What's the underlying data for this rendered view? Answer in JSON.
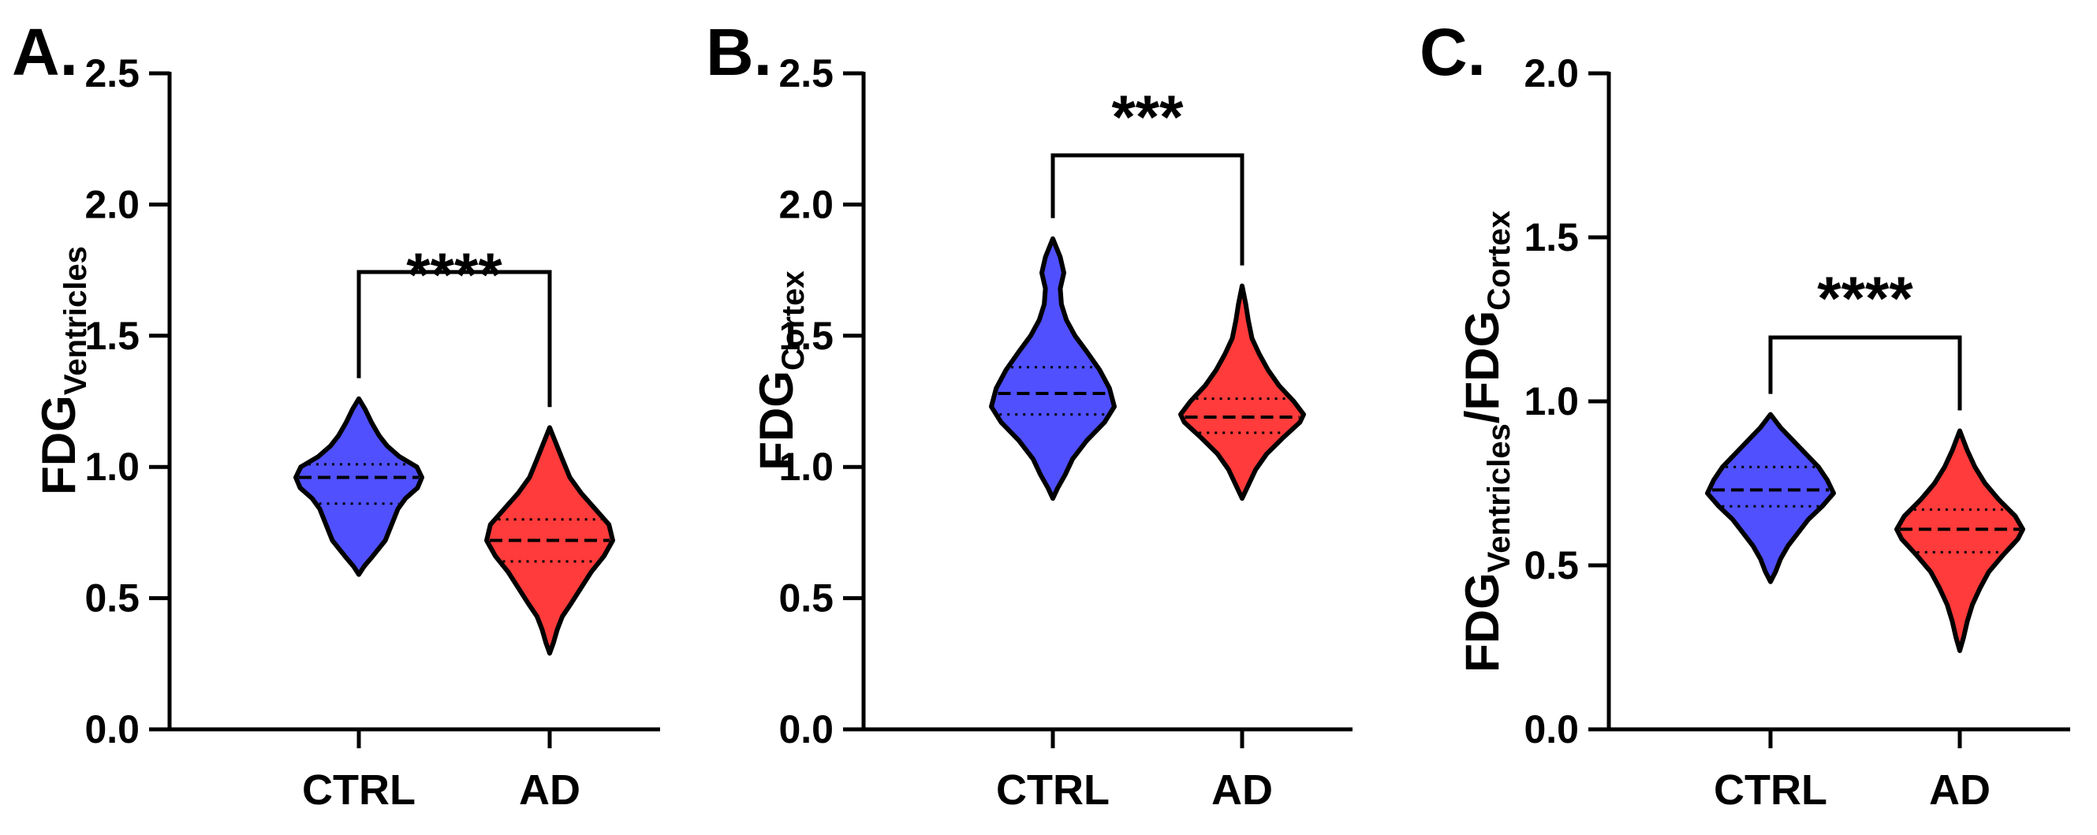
{
  "chart_data": [
    {
      "type": "violin",
      "panel_label": "A.",
      "ylabel": {
        "parts": [
          {
            "text": "FDG"
          },
          {
            "text": "Ventricles",
            "sub": true
          }
        ]
      },
      "ylim": [
        0,
        2.5
      ],
      "yticks": [
        0.0,
        0.5,
        1.0,
        1.5,
        2.0,
        2.5
      ],
      "ytick_labels": [
        "0.0",
        "0.5",
        "1.0",
        "1.5",
        "2.0",
        "2.5"
      ],
      "categories": [
        "CTRL",
        "AD"
      ],
      "significance": "****",
      "groups": [
        {
          "name": "CTRL",
          "color": "#5050ff",
          "min": 0.59,
          "max": 1.26,
          "median": 0.96,
          "q1": 0.86,
          "q3": 1.01,
          "profile": [
            [
              0.59,
              0
            ],
            [
              0.62,
              0.08
            ],
            [
              0.66,
              0.22
            ],
            [
              0.72,
              0.42
            ],
            [
              0.78,
              0.52
            ],
            [
              0.84,
              0.62
            ],
            [
              0.88,
              0.74
            ],
            [
              0.92,
              0.93
            ],
            [
              0.96,
              1.0
            ],
            [
              1.0,
              0.92
            ],
            [
              1.04,
              0.64
            ],
            [
              1.08,
              0.45
            ],
            [
              1.12,
              0.32
            ],
            [
              1.17,
              0.2
            ],
            [
              1.22,
              0.1
            ],
            [
              1.26,
              0
            ]
          ]
        },
        {
          "name": "AD",
          "color": "#ff3b3b",
          "min": 0.29,
          "max": 1.15,
          "median": 0.72,
          "q1": 0.64,
          "q3": 0.8,
          "profile": [
            [
              0.29,
              0
            ],
            [
              0.33,
              0.06
            ],
            [
              0.38,
              0.12
            ],
            [
              0.43,
              0.2
            ],
            [
              0.48,
              0.34
            ],
            [
              0.54,
              0.5
            ],
            [
              0.6,
              0.66
            ],
            [
              0.66,
              0.86
            ],
            [
              0.72,
              1.0
            ],
            [
              0.78,
              0.94
            ],
            [
              0.84,
              0.72
            ],
            [
              0.9,
              0.5
            ],
            [
              0.96,
              0.32
            ],
            [
              1.03,
              0.2
            ],
            [
              1.09,
              0.1
            ],
            [
              1.15,
              0
            ]
          ]
        }
      ]
    },
    {
      "type": "violin",
      "panel_label": "B.",
      "ylabel": {
        "parts": [
          {
            "text": "FDG"
          },
          {
            "text": "Cortex",
            "sub": true
          }
        ]
      },
      "ylim": [
        0,
        2.5
      ],
      "yticks": [
        0.0,
        0.5,
        1.0,
        1.5,
        2.0,
        2.5
      ],
      "ytick_labels": [
        "0.0",
        "0.5",
        "1.0",
        "1.5",
        "2.0",
        "2.5"
      ],
      "categories": [
        "CTRL",
        "AD"
      ],
      "significance": "***",
      "groups": [
        {
          "name": "CTRL",
          "color": "#5050ff",
          "min": 0.88,
          "max": 1.87,
          "median": 1.28,
          "q1": 1.2,
          "q3": 1.38,
          "profile": [
            [
              0.88,
              0
            ],
            [
              0.92,
              0.08
            ],
            [
              0.97,
              0.2
            ],
            [
              1.03,
              0.32
            ],
            [
              1.1,
              0.55
            ],
            [
              1.17,
              0.84
            ],
            [
              1.23,
              1.0
            ],
            [
              1.3,
              0.92
            ],
            [
              1.37,
              0.76
            ],
            [
              1.44,
              0.55
            ],
            [
              1.5,
              0.36
            ],
            [
              1.56,
              0.22
            ],
            [
              1.62,
              0.14
            ],
            [
              1.68,
              0.12
            ],
            [
              1.74,
              0.18
            ],
            [
              1.8,
              0.12
            ],
            [
              1.87,
              0
            ]
          ]
        },
        {
          "name": "AD",
          "color": "#ff3b3b",
          "min": 0.88,
          "max": 1.69,
          "median": 1.19,
          "q1": 1.13,
          "q3": 1.26,
          "profile": [
            [
              0.88,
              0
            ],
            [
              0.93,
              0.1
            ],
            [
              0.99,
              0.22
            ],
            [
              1.05,
              0.4
            ],
            [
              1.11,
              0.66
            ],
            [
              1.17,
              0.94
            ],
            [
              1.2,
              1.0
            ],
            [
              1.25,
              0.84
            ],
            [
              1.31,
              0.6
            ],
            [
              1.37,
              0.42
            ],
            [
              1.43,
              0.28
            ],
            [
              1.49,
              0.16
            ],
            [
              1.56,
              0.1
            ],
            [
              1.62,
              0.06
            ],
            [
              1.69,
              0
            ]
          ]
        }
      ]
    },
    {
      "type": "violin",
      "panel_label": "C.",
      "ylabel": {
        "parts": [
          {
            "text": "FDG"
          },
          {
            "text": "Ventricles",
            "sub": true
          },
          {
            "text": "/FDG"
          },
          {
            "text": "Cortex",
            "sub": true
          }
        ]
      },
      "ylim": [
        0,
        2.0
      ],
      "yticks": [
        0.0,
        0.5,
        1.0,
        1.5,
        2.0
      ],
      "ytick_labels": [
        "0.0",
        "0.5",
        "1.0",
        "1.5",
        "2.0"
      ],
      "categories": [
        "CTRL",
        "AD"
      ],
      "significance": "****",
      "groups": [
        {
          "name": "CTRL",
          "color": "#5050ff",
          "min": 0.45,
          "max": 0.96,
          "median": 0.73,
          "q1": 0.68,
          "q3": 0.8,
          "profile": [
            [
              0.45,
              0
            ],
            [
              0.48,
              0.08
            ],
            [
              0.52,
              0.16
            ],
            [
              0.56,
              0.28
            ],
            [
              0.6,
              0.44
            ],
            [
              0.64,
              0.6
            ],
            [
              0.68,
              0.82
            ],
            [
              0.72,
              1.0
            ],
            [
              0.76,
              0.9
            ],
            [
              0.8,
              0.76
            ],
            [
              0.84,
              0.56
            ],
            [
              0.88,
              0.36
            ],
            [
              0.92,
              0.16
            ],
            [
              0.96,
              0
            ]
          ]
        },
        {
          "name": "AD",
          "color": "#ff3b3b",
          "min": 0.24,
          "max": 0.91,
          "median": 0.61,
          "q1": 0.54,
          "q3": 0.67,
          "profile": [
            [
              0.24,
              0
            ],
            [
              0.28,
              0.06
            ],
            [
              0.33,
              0.12
            ],
            [
              0.38,
              0.2
            ],
            [
              0.43,
              0.32
            ],
            [
              0.48,
              0.46
            ],
            [
              0.53,
              0.68
            ],
            [
              0.58,
              0.92
            ],
            [
              0.61,
              1.0
            ],
            [
              0.65,
              0.88
            ],
            [
              0.7,
              0.62
            ],
            [
              0.75,
              0.4
            ],
            [
              0.8,
              0.24
            ],
            [
              0.85,
              0.12
            ],
            [
              0.91,
              0
            ]
          ]
        }
      ]
    }
  ]
}
